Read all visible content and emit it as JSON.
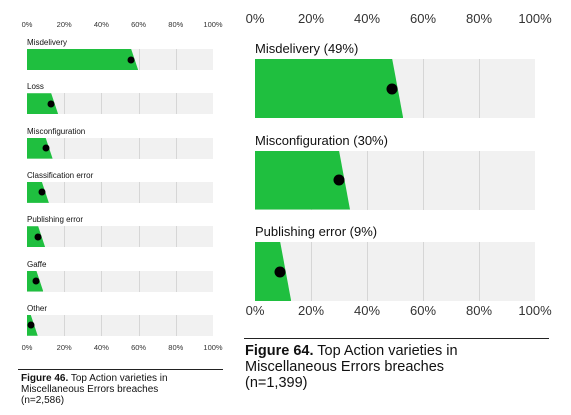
{
  "chart_data": [
    {
      "type": "bar",
      "orientation": "horizontal",
      "figure_label": "Figure 46.",
      "caption": "Top Action varieties in Miscellaneous Errors breaches",
      "sample": "(n=2,586)",
      "xlim": [
        0,
        100
      ],
      "ticks": [
        "0%",
        "20%",
        "40%",
        "60%",
        "80%",
        "100%"
      ],
      "categories": [
        "Misdelivery",
        "Loss",
        "Misconfiguration",
        "Classification error",
        "Publishing error",
        "Gaffe",
        "Other"
      ],
      "values": [
        56,
        13,
        10,
        8,
        6,
        5,
        2
      ],
      "colors": {
        "bar": "#1fbf3f",
        "track": "#f1f1f1",
        "marker": "#000000"
      }
    },
    {
      "type": "bar",
      "orientation": "horizontal",
      "figure_label": "Figure 64.",
      "caption": "Top Action varieties in Miscellaneous Errors breaches",
      "sample": "(n=1,399)",
      "xlim": [
        0,
        100
      ],
      "ticks": [
        "0%",
        "20%",
        "40%",
        "60%",
        "80%",
        "100%"
      ],
      "categories": [
        "Misdelivery (49%)",
        "Misconfiguration (30%)",
        "Publishing error (9%)"
      ],
      "values": [
        49,
        30,
        9
      ],
      "colors": {
        "bar": "#1fbf3f",
        "track": "#f1f1f1",
        "marker": "#000000"
      }
    }
  ]
}
